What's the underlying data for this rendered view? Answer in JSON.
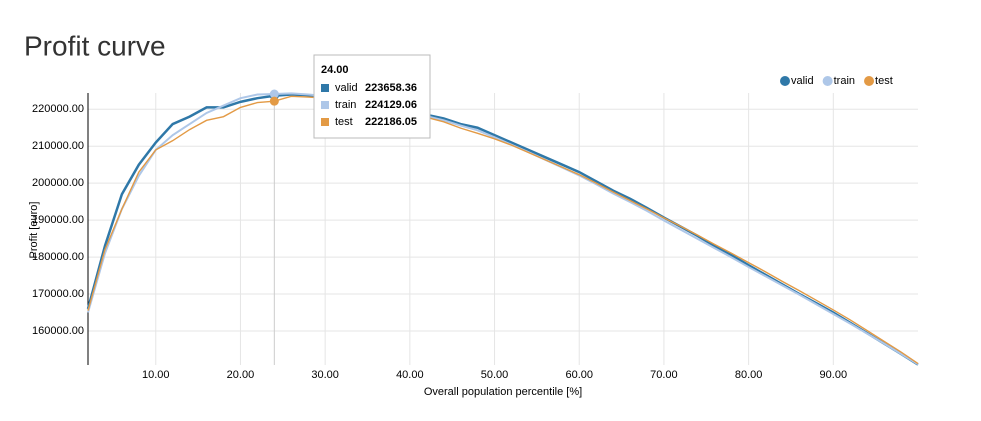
{
  "chart_data": {
    "type": "line",
    "title": "Profit curve",
    "xlabel": "Overall population percentile [%]",
    "ylabel": "Profit [euro]",
    "x": [
      2,
      4,
      6,
      8,
      10,
      12,
      14,
      16,
      18,
      20,
      22,
      24,
      26,
      28,
      30,
      32,
      34,
      36,
      38,
      40,
      42,
      44,
      46,
      48,
      50,
      52,
      54,
      56,
      58,
      60,
      62,
      64,
      66,
      68,
      70,
      72,
      74,
      76,
      78,
      80,
      82,
      84,
      86,
      88,
      90,
      92,
      94,
      96,
      98,
      100
    ],
    "series": [
      {
        "name": "valid",
        "color": "#2f78a8",
        "values": [
          166000,
          183000,
          197000,
          205000,
          211000,
          216000,
          218000,
          220500,
          220500,
          222000,
          223000,
          223658.36,
          224000,
          223800,
          223500,
          223000,
          222500,
          221500,
          220500,
          219500,
          218500,
          217500,
          216000,
          215000,
          213000,
          211000,
          209000,
          207000,
          205000,
          203000,
          200500,
          198000,
          195800,
          193300,
          190700,
          188200,
          185700,
          183000,
          180500,
          177800,
          175200,
          172600,
          170000,
          167500,
          165000,
          162200,
          159400,
          156600,
          153800,
          150900
        ]
      },
      {
        "name": "train",
        "color": "#aec7e8",
        "values": [
          165000,
          181000,
          193000,
          202000,
          209000,
          213000,
          216000,
          219000,
          221000,
          223000,
          224000,
          224129.06,
          224300,
          224000,
          223600,
          223000,
          222300,
          221300,
          220200,
          219200,
          218100,
          217000,
          215600,
          214300,
          212400,
          210400,
          208400,
          206300,
          204200,
          202100,
          199700,
          197200,
          194900,
          192500,
          189900,
          187400,
          184900,
          182400,
          179900,
          177300,
          174800,
          172300,
          169800,
          167200,
          164600,
          162000,
          159300,
          156600,
          153800,
          151000
        ]
      },
      {
        "name": "test",
        "color": "#e39a45",
        "values": [
          165500,
          182000,
          193000,
          203000,
          209000,
          211500,
          214500,
          217000,
          218000,
          220500,
          221800,
          222186.05,
          223500,
          223300,
          223000,
          222600,
          222000,
          221000,
          220000,
          219000,
          217800,
          216600,
          214900,
          213500,
          212000,
          210300,
          208300,
          206300,
          204300,
          202300,
          200000,
          197600,
          195300,
          193000,
          190600,
          188300,
          185900,
          183400,
          181000,
          178500,
          176000,
          173400,
          170900,
          168300,
          165700,
          163000,
          160100,
          157200,
          154300,
          151200
        ]
      }
    ],
    "xlim": [
      2,
      100
    ],
    "ylim": [
      150800,
      224400
    ],
    "xticks": [
      {
        "value": 10,
        "label": "10.00"
      },
      {
        "value": 20,
        "label": "20.00"
      },
      {
        "value": 30,
        "label": "30.00"
      },
      {
        "value": 40,
        "label": "40.00"
      },
      {
        "value": 50,
        "label": "50.00"
      },
      {
        "value": 60,
        "label": "60.00"
      },
      {
        "value": 70,
        "label": "70.00"
      },
      {
        "value": 80,
        "label": "80.00"
      },
      {
        "value": 90,
        "label": "90.00"
      }
    ],
    "yticks": [
      {
        "value": 160000,
        "label": "160000.00"
      },
      {
        "value": 170000,
        "label": "170000.00"
      },
      {
        "value": 180000,
        "label": "180000.00"
      },
      {
        "value": 190000,
        "label": "190000.00"
      },
      {
        "value": 200000,
        "label": "200000.00"
      },
      {
        "value": 210000,
        "label": "210000.00"
      },
      {
        "value": 220000,
        "label": "220000.00"
      }
    ],
    "grid": true,
    "legend": "top-right",
    "tooltip": {
      "title": "24.00"
    }
  }
}
